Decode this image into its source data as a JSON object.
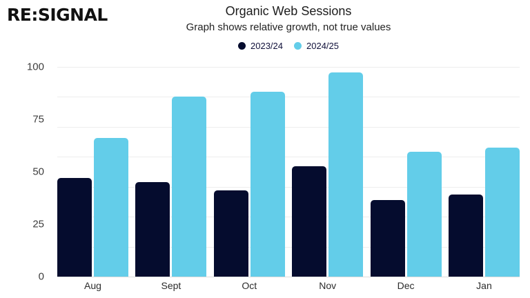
{
  "header": {
    "logo": "RE:SIGNAL"
  },
  "chart_data": {
    "type": "bar",
    "title": "Organic Web Sessions",
    "subtitle": "Graph shows relative growth, not true values",
    "categories": [
      "Aug",
      "Sept",
      "Oct",
      "Nov",
      "Dec",
      "Jan"
    ],
    "series": [
      {
        "name": "2023/24",
        "color": "#050C2E",
        "values": [
          47,
          45,
          41,
          52.5,
          36.5,
          39
        ]
      },
      {
        "name": "2024/25",
        "color": "#63CDE9",
        "values": [
          66,
          86,
          88,
          97.5,
          59.5,
          61.5
        ]
      }
    ],
    "ylim": [
      0,
      100
    ],
    "y_ticks": [
      0,
      25,
      50,
      75,
      100
    ],
    "gridline_divisions": 7,
    "grid": "horizontal",
    "legend_position": "top",
    "colors": {
      "gridline": "#EDEDED",
      "baseline": "#DCDCDC",
      "title_text": "#1C1C1C",
      "axis_text": "#3D3D3D"
    }
  }
}
